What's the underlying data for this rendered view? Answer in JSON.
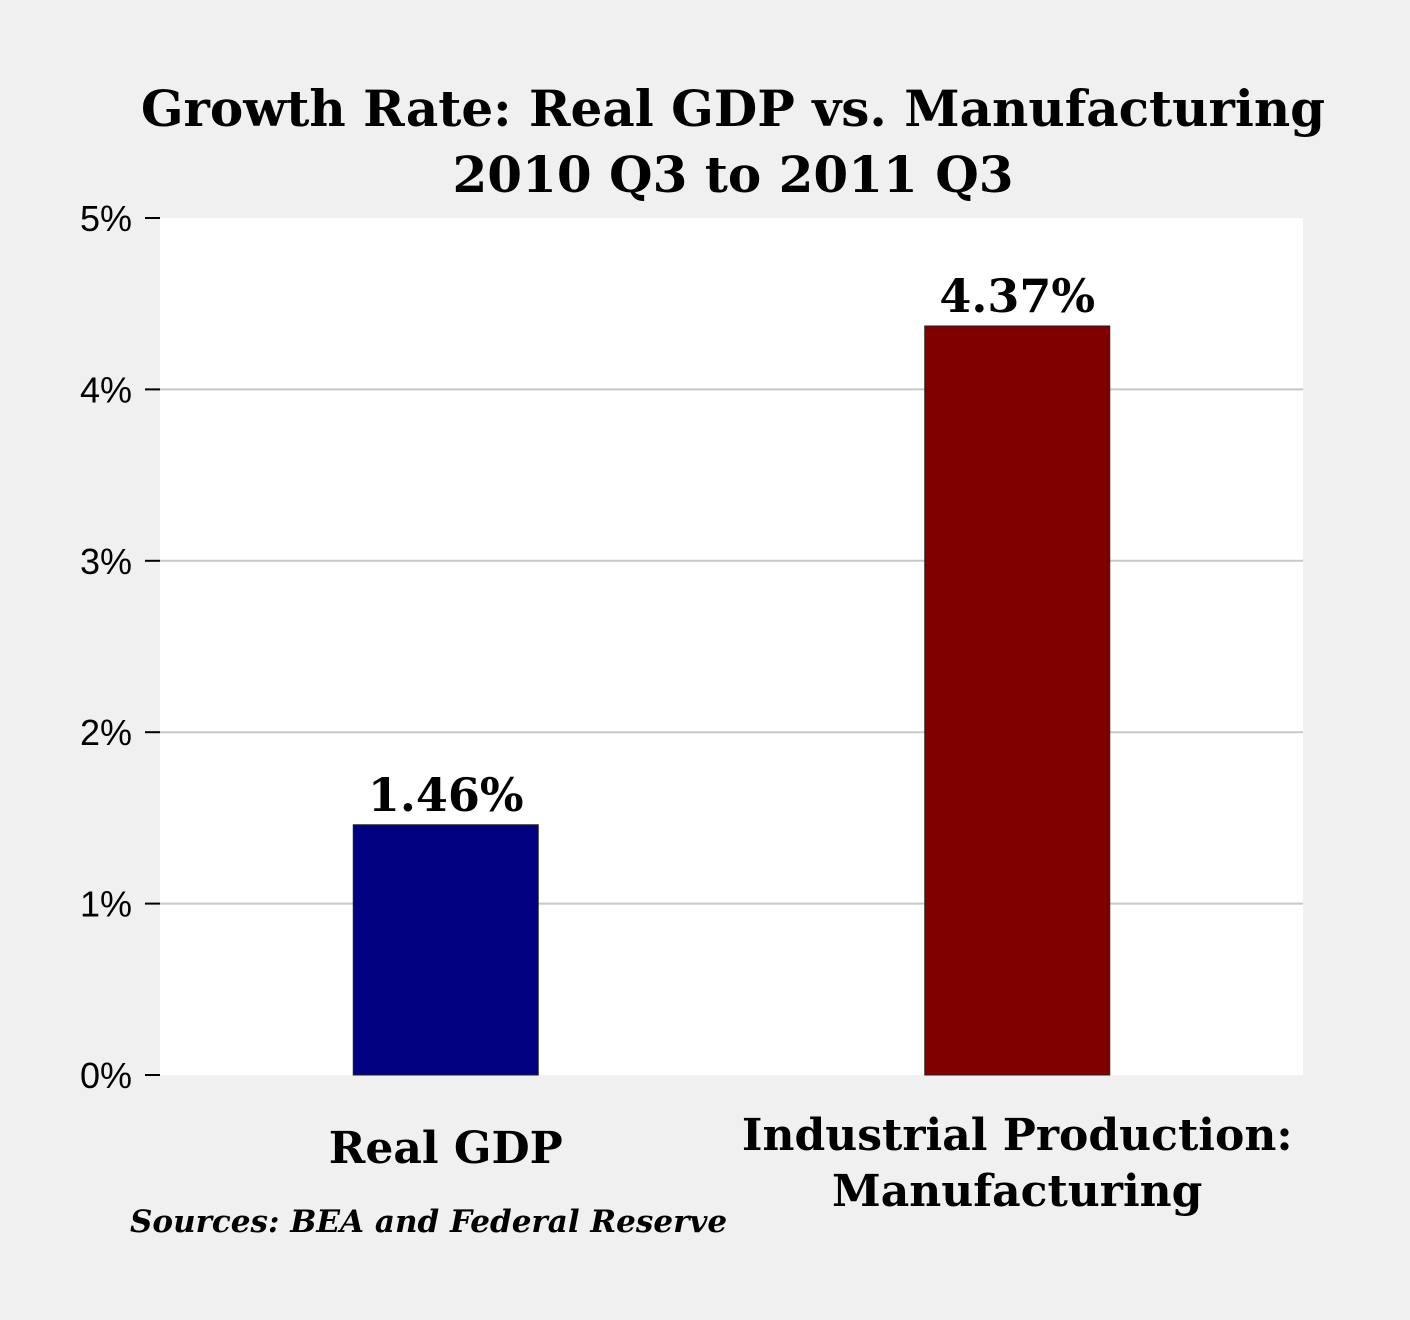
{
  "chart_data": {
    "type": "bar",
    "title": "Growth Rate: Real GDP vs. Manufacturing",
    "subtitle": "2010 Q3 to 2011 Q3",
    "categories": [
      [
        "Real GDP"
      ],
      [
        "Industrial Production:",
        "Manufacturing"
      ]
    ],
    "values": [
      1.46,
      4.37
    ],
    "data_labels": [
      "1.46%",
      "4.37%"
    ],
    "bar_colors": [
      "#000080",
      "#800000"
    ],
    "ylim": [
      0,
      5
    ],
    "yticks": [
      0,
      1,
      2,
      3,
      4,
      5
    ],
    "ytick_labels": [
      "0%",
      "1%",
      "2%",
      "3%",
      "4%",
      "5%"
    ],
    "grid": true,
    "xlabel": "",
    "ylabel": ""
  },
  "source_note": "Sources: BEA and Federal Reserve"
}
